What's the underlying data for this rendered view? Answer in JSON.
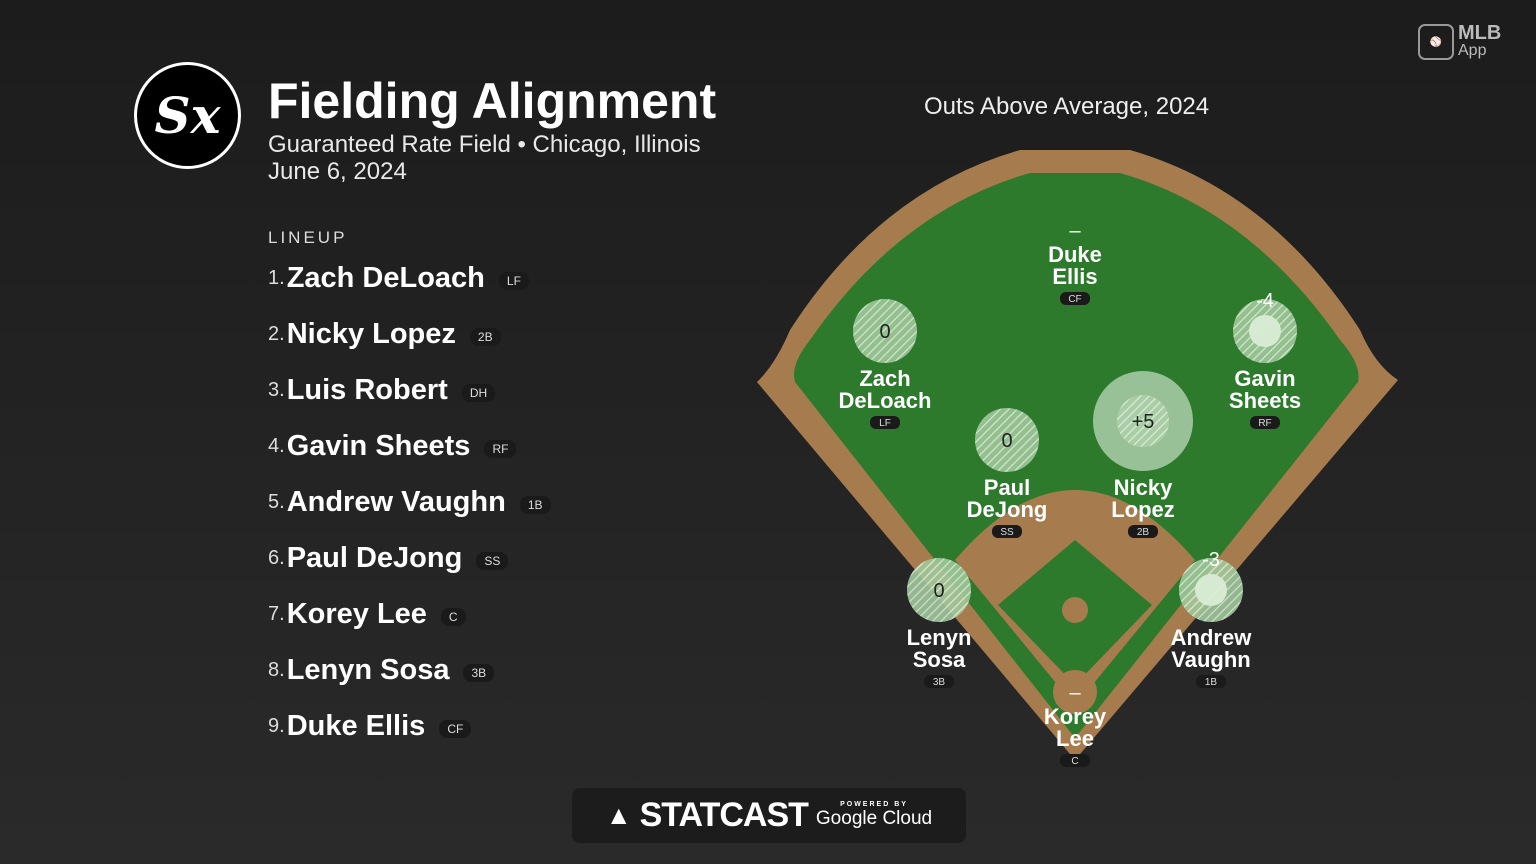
{
  "header": {
    "team_logo": "white-sox-logo",
    "title": "Fielding Alignment",
    "venue": "Guaranteed Rate Field • Chicago, Illinois",
    "date": "June 6, 2024"
  },
  "chart_title": "Outs Above Average, 2024",
  "lineup": {
    "heading": "LINEUP",
    "items": [
      {
        "num": "1.",
        "name": "Zach DeLoach",
        "pos": "LF"
      },
      {
        "num": "2.",
        "name": "Nicky Lopez",
        "pos": "2B"
      },
      {
        "num": "3.",
        "name": "Luis Robert",
        "pos": "DH"
      },
      {
        "num": "4.",
        "name": "Gavin Sheets",
        "pos": "RF"
      },
      {
        "num": "5.",
        "name": "Andrew Vaughn",
        "pos": "1B"
      },
      {
        "num": "6.",
        "name": "Paul DeJong",
        "pos": "SS"
      },
      {
        "num": "7.",
        "name": "Korey Lee",
        "pos": "C"
      },
      {
        "num": "8.",
        "name": "Lenyn Sosa",
        "pos": "3B"
      },
      {
        "num": "9.",
        "name": "Duke Ellis",
        "pos": "CF"
      }
    ]
  },
  "field": {
    "colors": {
      "dirt": "#a67c4e",
      "grass": "#2d7a2d",
      "circle": "#d8ecd4"
    },
    "players": [
      {
        "pos": "CF",
        "first": "Duke",
        "last": "Ellis",
        "oaa": "–"
      },
      {
        "pos": "LF",
        "first": "Zach",
        "last": "DeLoach",
        "oaa": "0"
      },
      {
        "pos": "RF",
        "first": "Gavin",
        "last": "Sheets",
        "oaa": "-4"
      },
      {
        "pos": "SS",
        "first": "Paul",
        "last": "DeJong",
        "oaa": "0"
      },
      {
        "pos": "2B",
        "first": "Nicky",
        "last": "Lopez",
        "oaa": "+5"
      },
      {
        "pos": "3B",
        "first": "Lenyn",
        "last": "Sosa",
        "oaa": "0"
      },
      {
        "pos": "1B",
        "first": "Andrew",
        "last": "Vaughn",
        "oaa": "-3"
      },
      {
        "pos": "C",
        "first": "Korey",
        "last": "Lee",
        "oaa": "–"
      }
    ]
  },
  "branding": {
    "app": "MLB",
    "app_sub": "App",
    "statcast": "STATCAST",
    "powered": "POWERED BY",
    "cloud": "Google Cloud"
  }
}
